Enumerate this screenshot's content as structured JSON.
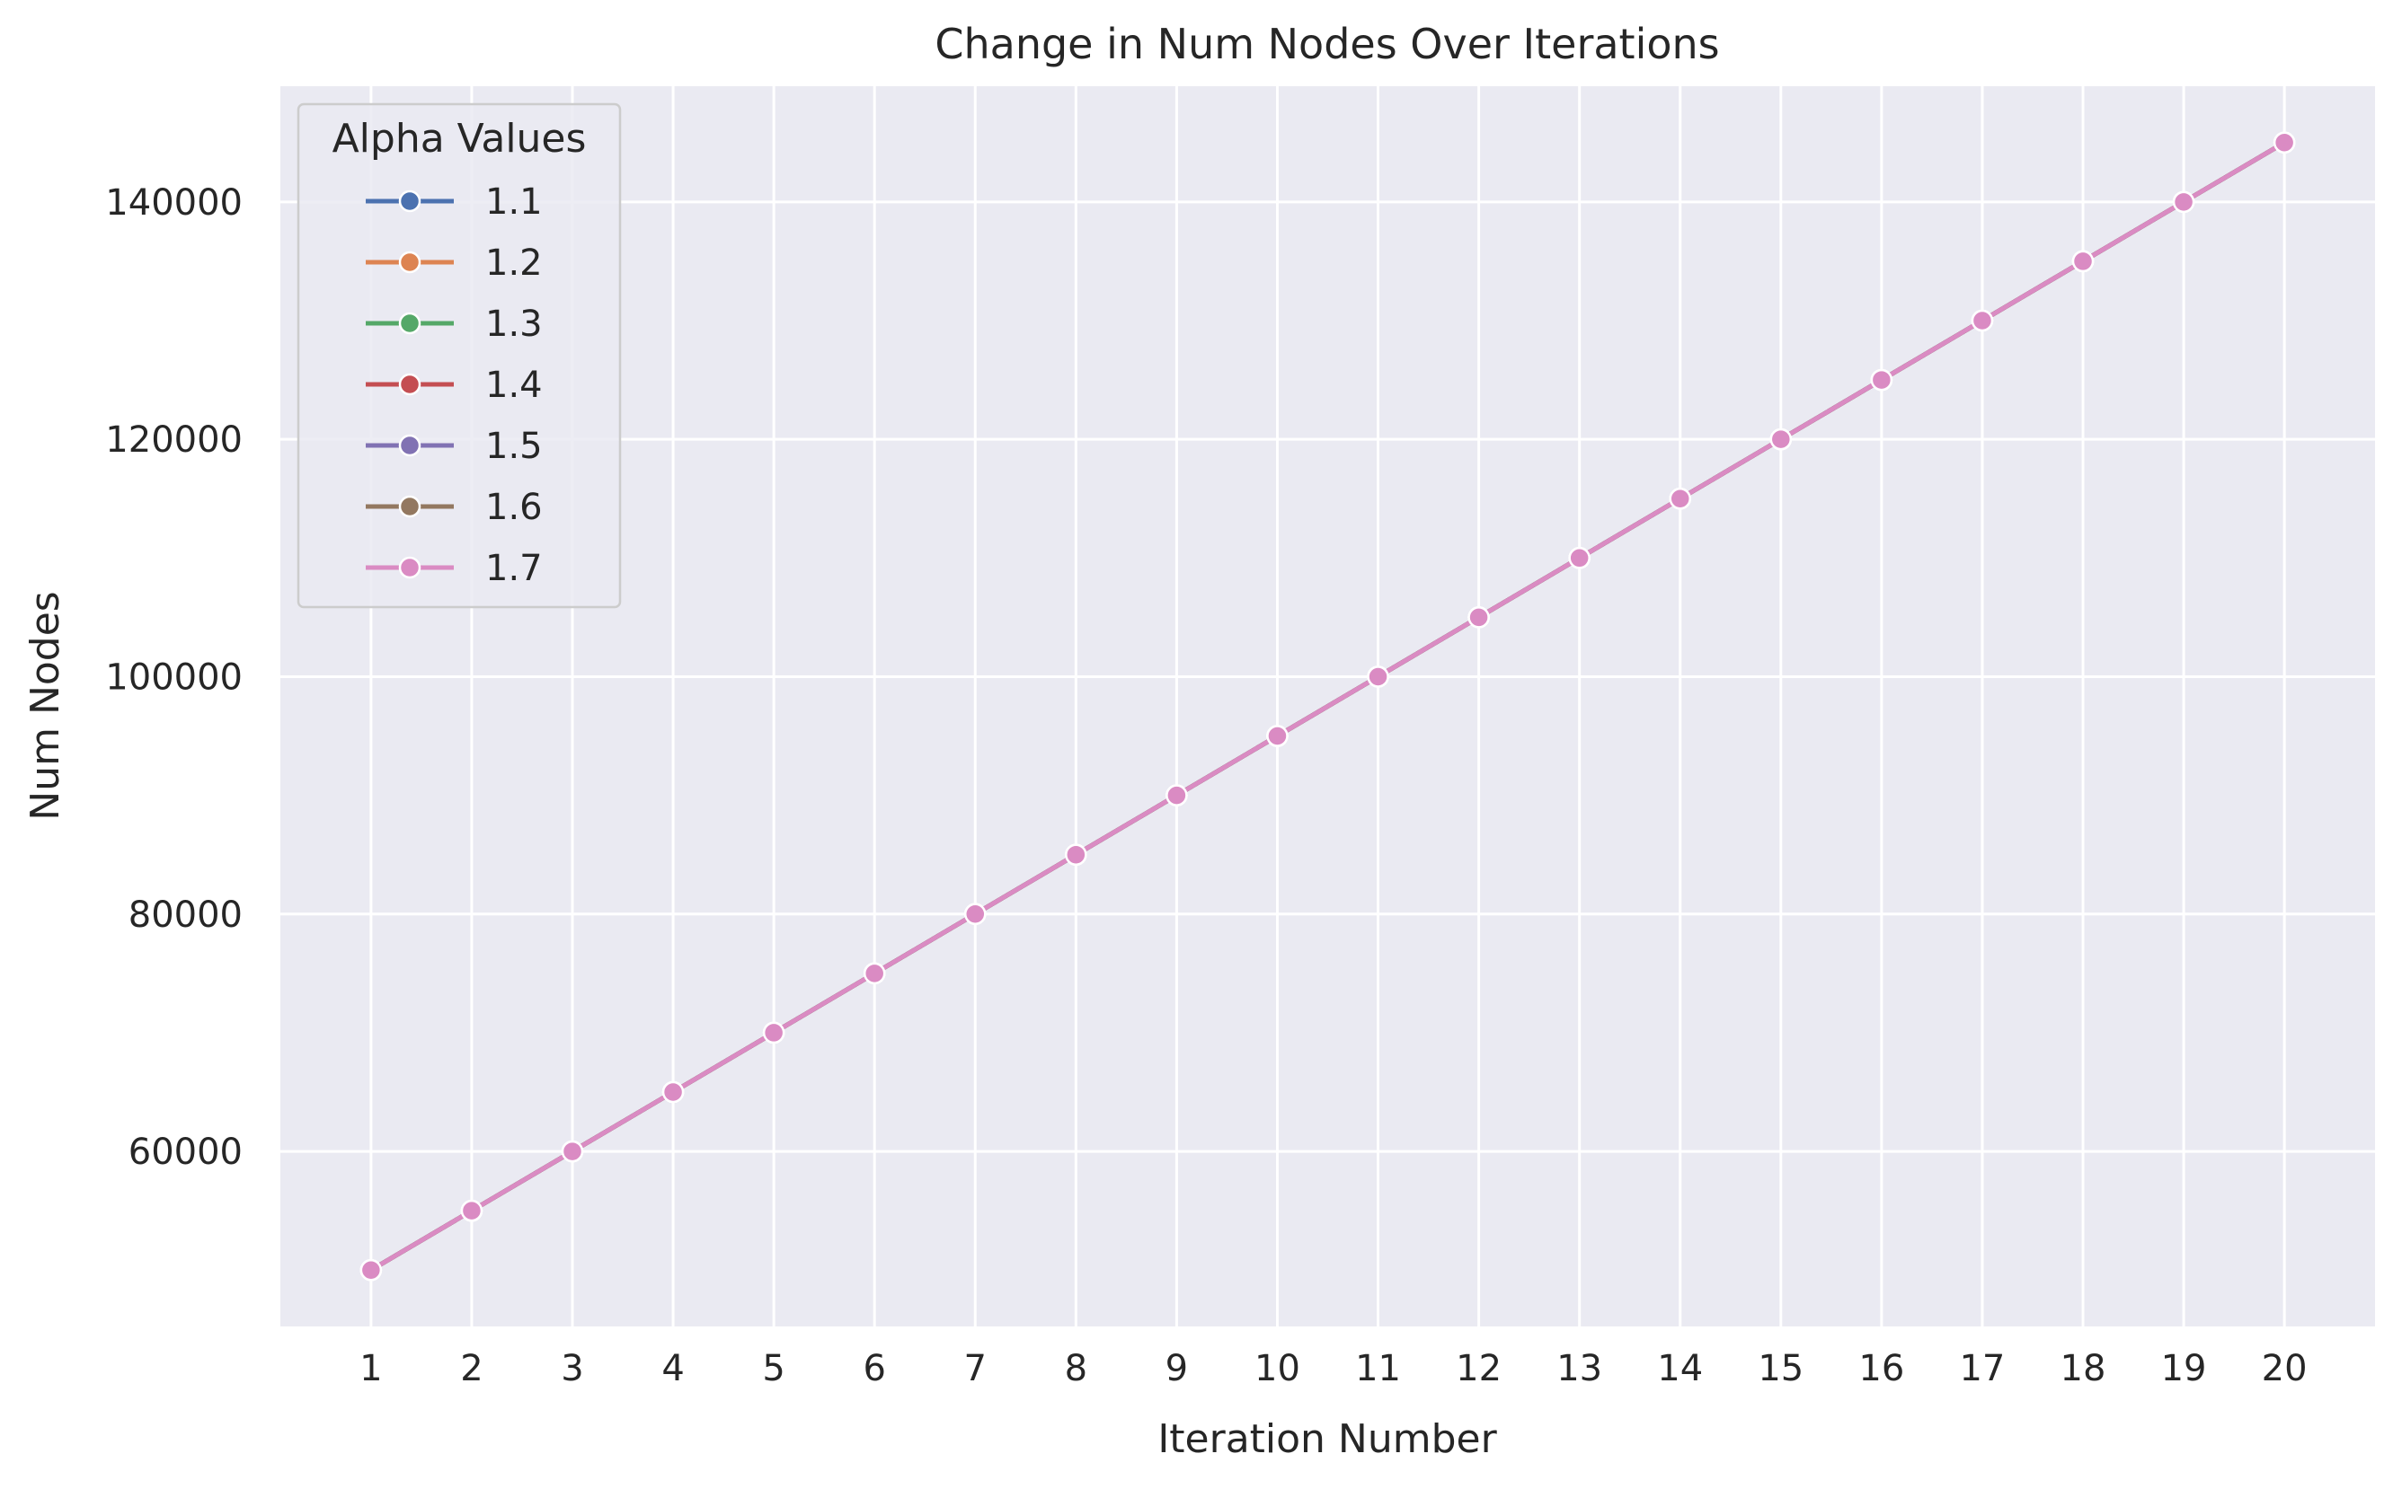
{
  "chart_data": {
    "type": "line",
    "title": "Change in Num Nodes Over Iterations",
    "xlabel": "Iteration Number",
    "ylabel": "Num Nodes",
    "x": [
      1,
      2,
      3,
      4,
      5,
      6,
      7,
      8,
      9,
      10,
      11,
      12,
      13,
      14,
      15,
      16,
      17,
      18,
      19,
      20
    ],
    "x_ticks": [
      "1",
      "2",
      "3",
      "4",
      "5",
      "6",
      "7",
      "8",
      "9",
      "10",
      "11",
      "12",
      "13",
      "14",
      "15",
      "16",
      "17",
      "18",
      "19",
      "20"
    ],
    "y_ticks": [
      60000,
      80000,
      100000,
      120000,
      140000
    ],
    "y_tick_labels": [
      "60000",
      "80000",
      "100000",
      "120000",
      "140000"
    ],
    "xlim": [
      0.1,
      20.9
    ],
    "ylim": [
      45250,
      149750
    ],
    "grid": true,
    "legend": {
      "title": "Alpha Values",
      "placement": "top-left"
    },
    "series": [
      {
        "name": "1.1",
        "color": "#4c72b0",
        "values": [
          50000,
          55000,
          60000,
          65000,
          70000,
          75000,
          80000,
          85000,
          90000,
          95000,
          100000,
          105000,
          110000,
          115000,
          120000,
          125000,
          130000,
          135000,
          140000,
          145000
        ]
      },
      {
        "name": "1.2",
        "color": "#dd8452",
        "values": [
          50000,
          55000,
          60000,
          65000,
          70000,
          75000,
          80000,
          85000,
          90000,
          95000,
          100000,
          105000,
          110000,
          115000,
          120000,
          125000,
          130000,
          135000,
          140000,
          145000
        ]
      },
      {
        "name": "1.3",
        "color": "#55a868",
        "values": [
          50000,
          55000,
          60000,
          65000,
          70000,
          75000,
          80000,
          85000,
          90000,
          95000,
          100000,
          105000,
          110000,
          115000,
          120000,
          125000,
          130000,
          135000,
          140000,
          145000
        ]
      },
      {
        "name": "1.4",
        "color": "#c44e52",
        "values": [
          50000,
          55000,
          60000,
          65000,
          70000,
          75000,
          80000,
          85000,
          90000,
          95000,
          100000,
          105000,
          110000,
          115000,
          120000,
          125000,
          130000,
          135000,
          140000,
          145000
        ]
      },
      {
        "name": "1.5",
        "color": "#8172b3",
        "values": [
          50000,
          55000,
          60000,
          65000,
          70000,
          75000,
          80000,
          85000,
          90000,
          95000,
          100000,
          105000,
          110000,
          115000,
          120000,
          125000,
          130000,
          135000,
          140000,
          145000
        ]
      },
      {
        "name": "1.6",
        "color": "#937860",
        "values": [
          50000,
          55000,
          60000,
          65000,
          70000,
          75000,
          80000,
          85000,
          90000,
          95000,
          100000,
          105000,
          110000,
          115000,
          120000,
          125000,
          130000,
          135000,
          140000,
          145000
        ]
      },
      {
        "name": "1.7",
        "color": "#da8bc3",
        "values": [
          50000,
          55000,
          60000,
          65000,
          70000,
          75000,
          80000,
          85000,
          90000,
          95000,
          100000,
          105000,
          110000,
          115000,
          120000,
          125000,
          130000,
          135000,
          140000,
          145000
        ]
      }
    ]
  }
}
